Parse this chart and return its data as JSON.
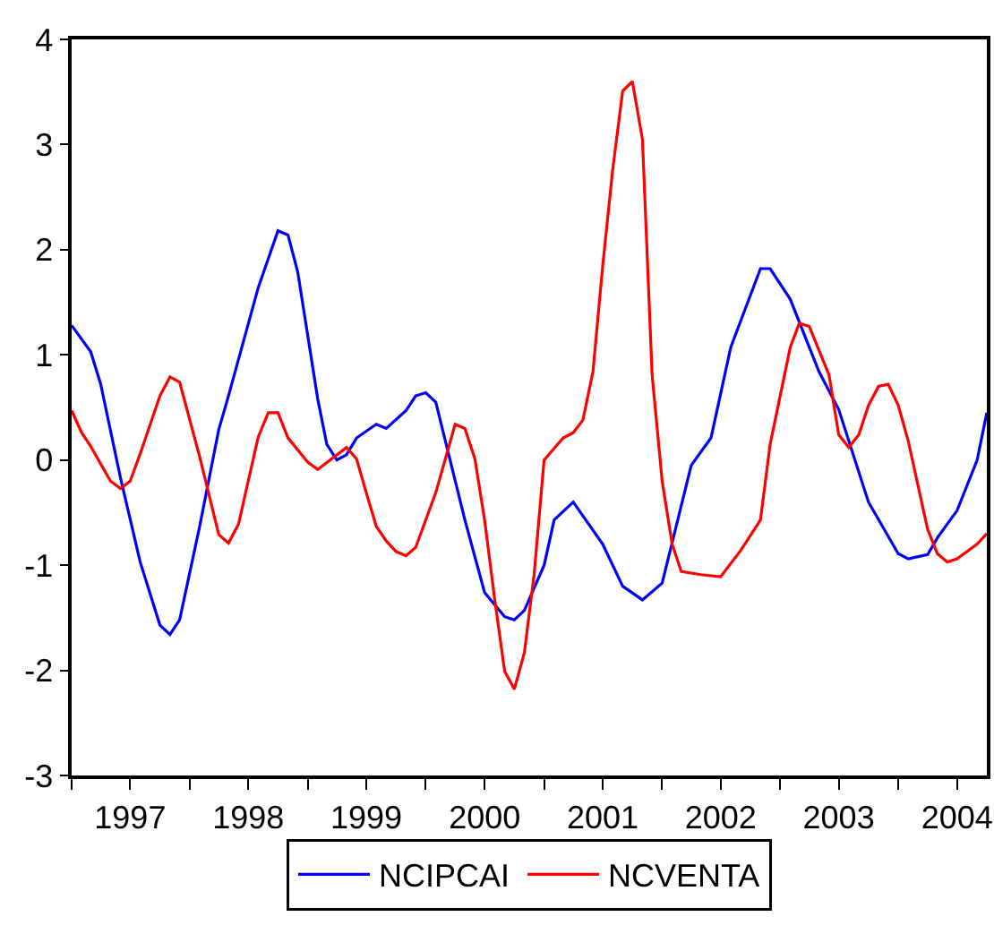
{
  "chart_data": {
    "type": "line",
    "xlim": [
      "1997-01",
      "2004-10"
    ],
    "xticks": [
      {
        "value": "1997-01",
        "label": null
      },
      {
        "value": "1997-07",
        "label": "1997"
      },
      {
        "value": "1998-01",
        "label": null
      },
      {
        "value": "1998-07",
        "label": "1998"
      },
      {
        "value": "1999-01",
        "label": null
      },
      {
        "value": "1999-07",
        "label": "1999"
      },
      {
        "value": "2000-01",
        "label": null
      },
      {
        "value": "2000-07",
        "label": "2000"
      },
      {
        "value": "2001-01",
        "label": null
      },
      {
        "value": "2001-07",
        "label": "2001"
      },
      {
        "value": "2002-01",
        "label": null
      },
      {
        "value": "2002-07",
        "label": "2002"
      },
      {
        "value": "2003-01",
        "label": null
      },
      {
        "value": "2003-07",
        "label": "2003"
      },
      {
        "value": "2004-01",
        "label": null
      },
      {
        "value": "2004-07",
        "label": "2004"
      }
    ],
    "ylim": [
      -3,
      4
    ],
    "yticks": [
      -3,
      -2,
      -1,
      0,
      1,
      2,
      3,
      4
    ],
    "legend": "bottom",
    "line_style": "solid",
    "series": [
      {
        "name": "NCIPCAI",
        "color": "#0000ff",
        "x": [
          "1997-01",
          "1997-03",
          "1997-04",
          "1997-06",
          "1997-08",
          "1997-10",
          "1997-11",
          "1997-12",
          "1998-02",
          "1998-04",
          "1998-05",
          "1998-08",
          "1998-10",
          "1998-11",
          "1998-12",
          "1999-02",
          "1999-03",
          "1999-04",
          "1999-05",
          "1999-06",
          "1999-08",
          "1999-09",
          "1999-11",
          "1999-12",
          "2000-01",
          "2000-02",
          "2000-05",
          "2000-07",
          "2000-09",
          "2000-10",
          "2000-11",
          "2001-01",
          "2001-02",
          "2001-04",
          "2001-07",
          "2001-09",
          "2001-11",
          "2002-01",
          "2002-04",
          "2002-06",
          "2002-08",
          "2002-11",
          "2002-12",
          "2003-02",
          "2003-05",
          "2003-07",
          "2003-10",
          "2004-01",
          "2004-02",
          "2004-04",
          "2004-05",
          "2004-07",
          "2004-09",
          "2004-10"
        ],
        "values": [
          1.28,
          1.03,
          0.72,
          -0.17,
          -0.97,
          -1.57,
          -1.66,
          -1.52,
          -0.63,
          0.29,
          0.61,
          1.64,
          2.18,
          2.14,
          1.79,
          0.58,
          0.15,
          0.0,
          0.05,
          0.21,
          0.34,
          0.3,
          0.47,
          0.61,
          0.64,
          0.55,
          -0.57,
          -1.26,
          -1.49,
          -1.52,
          -1.43,
          -1.0,
          -0.57,
          -0.4,
          -0.8,
          -1.2,
          -1.33,
          -1.17,
          -0.05,
          0.21,
          1.07,
          1.82,
          1.82,
          1.53,
          0.84,
          0.48,
          -0.4,
          -0.89,
          -0.94,
          -0.9,
          -0.74,
          -0.48,
          0.0,
          0.45
        ]
      },
      {
        "name": "NCVENTA",
        "color": "#ff0000",
        "x": [
          "1997-01",
          "1997-02",
          "1997-03",
          "1997-05",
          "1997-06",
          "1997-07",
          "1997-08",
          "1997-10",
          "1997-11",
          "1997-12",
          "1998-02",
          "1998-04",
          "1998-05",
          "1998-06",
          "1998-08",
          "1998-09",
          "1998-10",
          "1998-11",
          "1999-01",
          "1999-02",
          "1999-05",
          "1999-06",
          "1999-07",
          "1999-08",
          "1999-09",
          "1999-10",
          "1999-11",
          "1999-12",
          "2000-02",
          "2000-04",
          "2000-05",
          "2000-06",
          "2000-07",
          "2000-08",
          "2000-09",
          "2000-10",
          "2000-11",
          "2000-12",
          "2001-01",
          "2001-03",
          "2001-04",
          "2001-05",
          "2001-06",
          "2001-07",
          "2001-08",
          "2001-09",
          "2001-10",
          "2001-11",
          "2001-12",
          "2002-01",
          "2002-02",
          "2002-03",
          "2002-05",
          "2002-07",
          "2002-09",
          "2002-11",
          "2002-12",
          "2003-02",
          "2003-03",
          "2003-04",
          "2003-06",
          "2003-07",
          "2003-08",
          "2003-09",
          "2003-10",
          "2003-11",
          "2003-12",
          "2004-01",
          "2004-02",
          "2004-04",
          "2004-05",
          "2004-06",
          "2004-07",
          "2004-09",
          "2004-10"
        ],
        "values": [
          0.47,
          0.26,
          0.13,
          -0.2,
          -0.27,
          -0.2,
          0.06,
          0.61,
          0.79,
          0.74,
          0.03,
          -0.71,
          -0.79,
          -0.61,
          0.22,
          0.45,
          0.45,
          0.21,
          -0.02,
          -0.09,
          0.12,
          0.01,
          -0.31,
          -0.63,
          -0.77,
          -0.87,
          -0.91,
          -0.83,
          -0.31,
          0.34,
          0.3,
          0.01,
          -0.57,
          -1.32,
          -2.01,
          -2.18,
          -1.83,
          -1.09,
          0.0,
          0.21,
          0.26,
          0.38,
          0.84,
          1.84,
          2.76,
          3.51,
          3.6,
          3.05,
          0.81,
          -0.2,
          -0.8,
          -1.06,
          -1.09,
          -1.11,
          -0.86,
          -0.57,
          0.15,
          1.07,
          1.3,
          1.27,
          0.81,
          0.24,
          0.12,
          0.24,
          0.52,
          0.7,
          0.72,
          0.52,
          0.18,
          -0.66,
          -0.89,
          -0.97,
          -0.94,
          -0.8,
          -0.7
        ]
      }
    ]
  }
}
